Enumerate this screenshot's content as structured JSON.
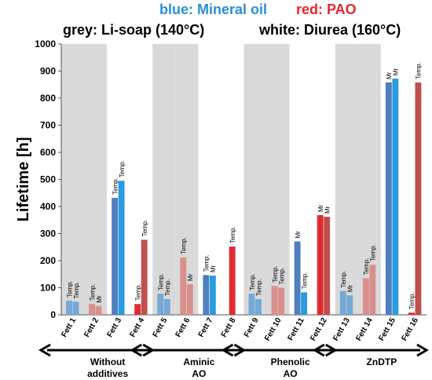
{
  "header": {
    "blue_text": "blue: Mineral oil",
    "red_text": "red: PAO",
    "grey_text": "grey: Li-soap (140°C)",
    "white_text": "white: Diurea (160°C)"
  },
  "colors": {
    "blue_dark": "#4f7fbf",
    "blue_light": "#2a9be0",
    "red_light": "#e02a31",
    "red_muted": "#c0504d",
    "red_pale": "#d9908d",
    "blue_pale": "#74a8d6",
    "band": "#d9d9d9"
  },
  "chart_data": {
    "type": "bar",
    "ylabel": "Lifetime [h]",
    "ylim": [
      0,
      1000
    ],
    "yticks": [
      0,
      100,
      200,
      300,
      400,
      500,
      600,
      700,
      800,
      900,
      1000
    ],
    "categories": [
      "Fett 1",
      "Fett 2",
      "Fett 3",
      "Fett 4",
      "Fett 5",
      "Fett 6",
      "Fett 7",
      "Fett 8",
      "Fett 9",
      "Fett 10",
      "Fett 11",
      "Fett 12",
      "Fett 13",
      "Fett 14",
      "Fett 15",
      "Fett 16"
    ],
    "thickener": [
      "grey",
      "grey",
      "white",
      "white",
      "grey",
      "grey",
      "white",
      "white",
      "grey",
      "grey",
      "white",
      "white",
      "grey",
      "grey",
      "white",
      "white"
    ],
    "bars": [
      {
        "values": [
          52,
          48
        ],
        "colors": [
          "blue_pale",
          "blue_pale"
        ],
        "labels": [
          "Temp.",
          "Temp."
        ]
      },
      {
        "values": [
          40,
          33
        ],
        "colors": [
          "red_pale",
          "red_pale"
        ],
        "labels": [
          "Temp.",
          "Mr"
        ]
      },
      {
        "values": [
          432,
          495
        ],
        "colors": [
          "blue_dark",
          "blue_light"
        ],
        "labels": [
          "Temp.",
          "Temp."
        ]
      },
      {
        "values": [
          40,
          277
        ],
        "colors": [
          "red_light",
          "red_muted"
        ],
        "labels": [
          "Temp.",
          "Temp."
        ]
      },
      {
        "values": [
          78,
          58
        ],
        "colors": [
          "blue_pale",
          "blue_pale"
        ],
        "labels": [
          "Temp.",
          "Temp."
        ]
      },
      {
        "values": [
          212,
          113
        ],
        "colors": [
          "red_pale",
          "red_pale"
        ],
        "labels": [
          "Temp.",
          "Mr"
        ]
      },
      {
        "values": [
          147,
          145
        ],
        "colors": [
          "blue_dark",
          "blue_light"
        ],
        "labels": [
          "Temp.",
          "Mr"
        ]
      },
      {
        "values": [
          252
        ],
        "colors": [
          "red_light"
        ],
        "labels": [
          "Temp."
        ]
      },
      {
        "values": [
          78,
          58
        ],
        "colors": [
          "blue_pale",
          "blue_pale"
        ],
        "labels": [
          "Temp.",
          "Temp."
        ]
      },
      {
        "values": [
          107,
          100
        ],
        "colors": [
          "red_pale",
          "red_pale"
        ],
        "labels": [
          "Temp.",
          "Temp."
        ]
      },
      {
        "values": [
          271,
          83
        ],
        "colors": [
          "blue_dark",
          "blue_light"
        ],
        "labels": [
          "Mr",
          "Temp."
        ]
      },
      {
        "values": [
          368,
          362
        ],
        "colors": [
          "red_light",
          "red_muted"
        ],
        "labels": [
          "Mr",
          "Mr"
        ]
      },
      {
        "values": [
          88,
          72
        ],
        "colors": [
          "blue_pale",
          "blue_pale"
        ],
        "labels": [
          "Temp.",
          "Mr"
        ]
      },
      {
        "values": [
          135,
          185
        ],
        "colors": [
          "red_pale",
          "red_pale"
        ],
        "labels": [
          "Temp.",
          "Temp."
        ]
      },
      {
        "values": [
          858,
          872
        ],
        "colors": [
          "blue_dark",
          "blue_light"
        ],
        "labels": [
          "Mr",
          "Mr"
        ]
      },
      {
        "values": [
          8,
          858
        ],
        "colors": [
          "red_light",
          "red_muted"
        ],
        "labels": [
          "Temp.",
          "Temp."
        ]
      }
    ],
    "groups": [
      {
        "label_lines": [
          "Without",
          "additives"
        ],
        "from": 0,
        "to": 3
      },
      {
        "label_lines": [
          "Aminic",
          "AO"
        ],
        "from": 4,
        "to": 7
      },
      {
        "label_lines": [
          "Phenolic",
          "AO"
        ],
        "from": 8,
        "to": 11
      },
      {
        "label_lines": [
          "ZnDTP"
        ],
        "from": 12,
        "to": 15
      }
    ]
  }
}
